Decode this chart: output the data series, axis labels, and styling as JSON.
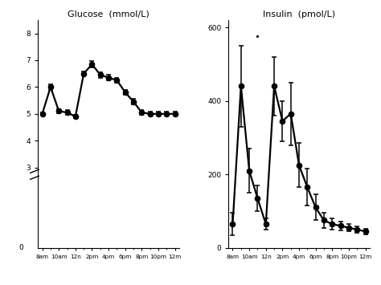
{
  "glucose_x": [
    0,
    1,
    2,
    3,
    4,
    5,
    6,
    7,
    8,
    9,
    10,
    11,
    12,
    13,
    14,
    15,
    16
  ],
  "glucose_y": [
    5.0,
    6.0,
    5.1,
    5.05,
    4.9,
    6.5,
    6.85,
    6.45,
    6.35,
    6.25,
    5.8,
    5.45,
    5.05,
    5.0,
    5.0,
    5.0,
    5.0
  ],
  "glucose_yerr": [
    0.05,
    0.1,
    0.08,
    0.08,
    0.05,
    0.08,
    0.12,
    0.1,
    0.1,
    0.1,
    0.1,
    0.1,
    0.08,
    0.07,
    0.07,
    0.07,
    0.07
  ],
  "insulin_x": [
    0,
    1,
    2,
    3,
    4,
    5,
    6,
    7,
    8,
    9,
    10,
    11,
    12,
    13,
    14,
    15,
    16
  ],
  "insulin_y": [
    65,
    440,
    210,
    135,
    65,
    440,
    345,
    365,
    225,
    165,
    110,
    75,
    65,
    60,
    55,
    50,
    45
  ],
  "insulin_yerr": [
    30,
    110,
    60,
    35,
    15,
    80,
    55,
    85,
    60,
    50,
    35,
    20,
    15,
    12,
    10,
    8,
    8
  ],
  "xtick_labels": [
    "8am",
    "10am",
    "12n",
    "2pm",
    "4pm",
    "6pm",
    "8pm",
    "10pm",
    "12m"
  ],
  "xtick_positions": [
    0,
    2,
    4,
    6,
    8,
    10,
    12,
    14,
    16
  ],
  "glucose_title": "Glucose  (mmol/L)",
  "insulin_title": "Insulin  (pmol/L)",
  "glucose_ylim": [
    0,
    8.5
  ],
  "glucose_yticks": [
    3,
    4,
    5,
    6,
    7,
    8
  ],
  "glucose_yticklabels": [
    "3",
    "4",
    "5",
    "6",
    "7",
    "8"
  ],
  "insulin_ylim": [
    0,
    620
  ],
  "insulin_yticks": [
    0,
    200,
    400,
    600
  ],
  "insulin_yticklabels": [
    "0",
    "200",
    "400",
    "600"
  ],
  "line_color": "#000000",
  "marker_color": "#000000",
  "markersize": 4.5,
  "linewidth": 1.6,
  "elinewidth": 1.1,
  "capsize": 2.5,
  "capthick": 1.1,
  "title_fontsize": 8,
  "tick_fontsize": 6.5,
  "xtick_fontsize": 5.2
}
